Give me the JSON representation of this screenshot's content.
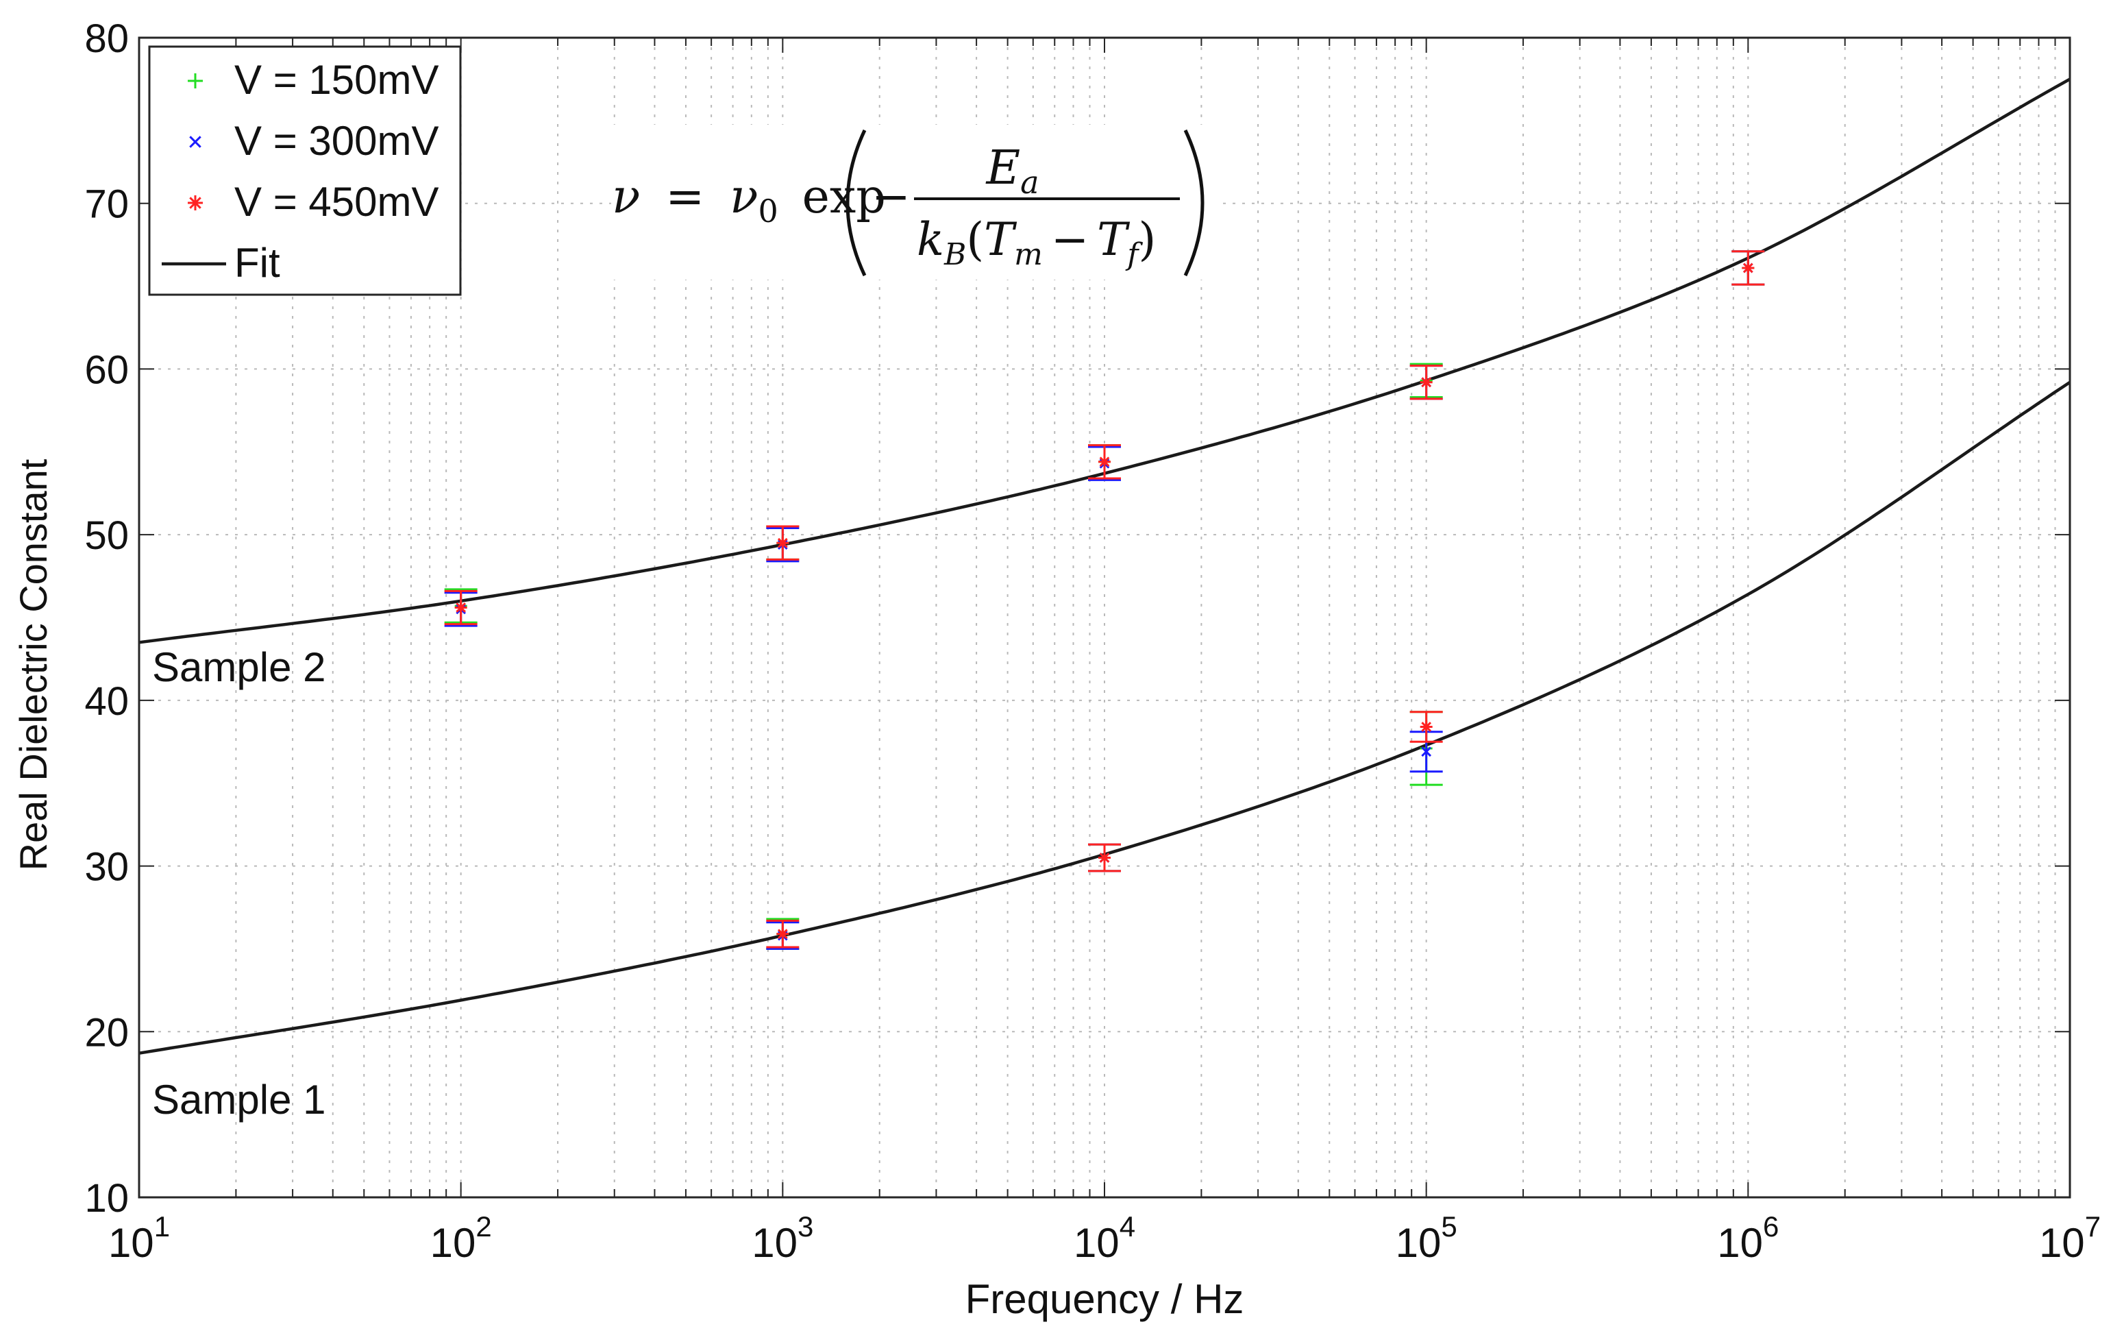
{
  "chart_data": {
    "type": "scatter",
    "title": "",
    "xlabel": "Frequency / Hz",
    "ylabel": "Real Dielectric Constant",
    "xscale": "log",
    "xlim": [
      10,
      10000000
    ],
    "ylim": [
      10,
      80
    ],
    "grid": true,
    "legend_position": "top-left",
    "x_ticks": [
      {
        "base": "10",
        "exp": "1",
        "value": 10
      },
      {
        "base": "10",
        "exp": "2",
        "value": 100
      },
      {
        "base": "10",
        "exp": "3",
        "value": 1000
      },
      {
        "base": "10",
        "exp": "4",
        "value": 10000
      },
      {
        "base": "10",
        "exp": "5",
        "value": 100000
      },
      {
        "base": "10",
        "exp": "6",
        "value": 1000000
      },
      {
        "base": "10",
        "exp": "7",
        "value": 10000000
      }
    ],
    "y_ticks": [
      {
        "label": "10",
        "value": 10
      },
      {
        "label": "20",
        "value": 20
      },
      {
        "label": "30",
        "value": 30
      },
      {
        "label": "40",
        "value": 40
      },
      {
        "label": "50",
        "value": 50
      },
      {
        "label": "60",
        "value": 60
      },
      {
        "label": "70",
        "value": 70
      },
      {
        "label": "80",
        "value": 80
      }
    ],
    "legend": [
      {
        "label": "V = 150mV",
        "marker": "+",
        "color": "#22dd22"
      },
      {
        "label": "V = 300mV",
        "marker": "x",
        "color": "#1a1aff"
      },
      {
        "label": "V = 450mV",
        "marker": "*",
        "color": "#ff2222"
      },
      {
        "label": "Fit",
        "marker": "line",
        "color": "#1a1a1a"
      }
    ],
    "annotations": [
      "Sample 2",
      "Sample 1"
    ],
    "equation": {
      "nu": "ν",
      "equals": "=",
      "nu0": "ν",
      "nu0_sub": "0",
      "func": "exp",
      "minus": "−",
      "numerator": "E",
      "numerator_sub": "a",
      "denominator_k": "k",
      "denominator_k_sub": "B",
      "denominator_open": "(",
      "denominator_t1": "T",
      "denominator_t1_sub": "m",
      "denominator_minus": "−",
      "denominator_t2": "T",
      "denominator_t2_sub": "f",
      "denominator_close": ")"
    },
    "fits": [
      {
        "name": "Sample 2 fit",
        "x": [
          10,
          100,
          1000,
          10000,
          100000,
          1000000,
          10000000
        ],
        "y": [
          43.5,
          46.0,
          49.4,
          53.7,
          59.3,
          66.7,
          77.5
        ]
      },
      {
        "name": "Sample 1 fit",
        "x": [
          10,
          100,
          1000,
          10000,
          100000,
          1000000,
          10000000
        ],
        "y": [
          18.7,
          21.9,
          25.8,
          30.7,
          37.3,
          46.4,
          59.2
        ]
      }
    ],
    "series": [
      {
        "name": "V = 150mV",
        "color": "#22dd22",
        "marker": "+",
        "points": [
          {
            "x": 100,
            "y": 45.7,
            "err": 1.0
          },
          {
            "x": 1000,
            "y": 25.9,
            "err": 0.9
          },
          {
            "x": 1000,
            "y": 49.5,
            "err": 1.0
          },
          {
            "x": 10000,
            "y": 30.5,
            "err": 0.8
          },
          {
            "x": 10000,
            "y": 54.4,
            "err": 1.0
          },
          {
            "x": 100000,
            "y": 37.1,
            "err": 2.2
          },
          {
            "x": 100000,
            "y": 59.3,
            "err": 1.0
          },
          {
            "x": 1000000,
            "y": 66.1,
            "err": 1.0
          }
        ]
      },
      {
        "name": "V = 300mV",
        "color": "#1a1aff",
        "marker": "x",
        "points": [
          {
            "x": 100,
            "y": 45.5,
            "err": 1.0
          },
          {
            "x": 1000,
            "y": 25.8,
            "err": 0.8
          },
          {
            "x": 1000,
            "y": 49.4,
            "err": 1.0
          },
          {
            "x": 10000,
            "y": 30.5,
            "err": 0.8
          },
          {
            "x": 10000,
            "y": 54.3,
            "err": 1.0
          },
          {
            "x": 100000,
            "y": 36.9,
            "err": 1.2
          },
          {
            "x": 100000,
            "y": 59.2,
            "err": 1.0
          },
          {
            "x": 1000000,
            "y": 66.1,
            "err": 1.0
          }
        ]
      },
      {
        "name": "V = 450mV",
        "color": "#ff2222",
        "marker": "*",
        "points": [
          {
            "x": 100,
            "y": 45.6,
            "err": 1.0
          },
          {
            "x": 1000,
            "y": 25.9,
            "err": 0.8
          },
          {
            "x": 1000,
            "y": 49.5,
            "err": 1.0
          },
          {
            "x": 10000,
            "y": 30.5,
            "err": 0.8
          },
          {
            "x": 10000,
            "y": 54.4,
            "err": 1.0
          },
          {
            "x": 100000,
            "y": 38.4,
            "err": 0.9
          },
          {
            "x": 100000,
            "y": 59.2,
            "err": 1.0
          },
          {
            "x": 1000000,
            "y": 66.1,
            "err": 1.0
          }
        ]
      }
    ]
  }
}
